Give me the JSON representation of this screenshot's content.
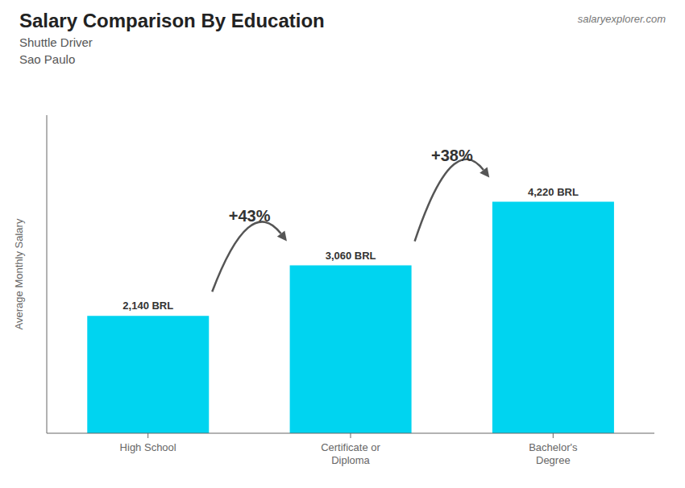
{
  "chart_data": {
    "type": "bar",
    "title": "Salary Comparison By Education",
    "subtitle": [
      "Shuttle Driver",
      "Sao Paulo"
    ],
    "ylabel": "Average Monthly Salary",
    "categories": [
      "High School",
      "Certificate or\nDiploma",
      "Bachelor's\nDegree"
    ],
    "values": [
      2140,
      3060,
      4220
    ],
    "value_labels": [
      "2,140 BRL",
      "3,060 BRL",
      "4,220 BRL"
    ],
    "data_labels": true,
    "color": "#00d4f0",
    "ylim": [
      0,
      5800
    ],
    "tick_labels": "x",
    "grid": false,
    "annotations": [
      {
        "text": "+43%",
        "from": "High School",
        "to": "Certificate or\nDiploma"
      },
      {
        "text": "+38%",
        "from": "Certificate or\nDiploma",
        "to": "Bachelor's\nDegree"
      },
      {
        "text": "salaryexplorer.com"
      }
    ]
  }
}
